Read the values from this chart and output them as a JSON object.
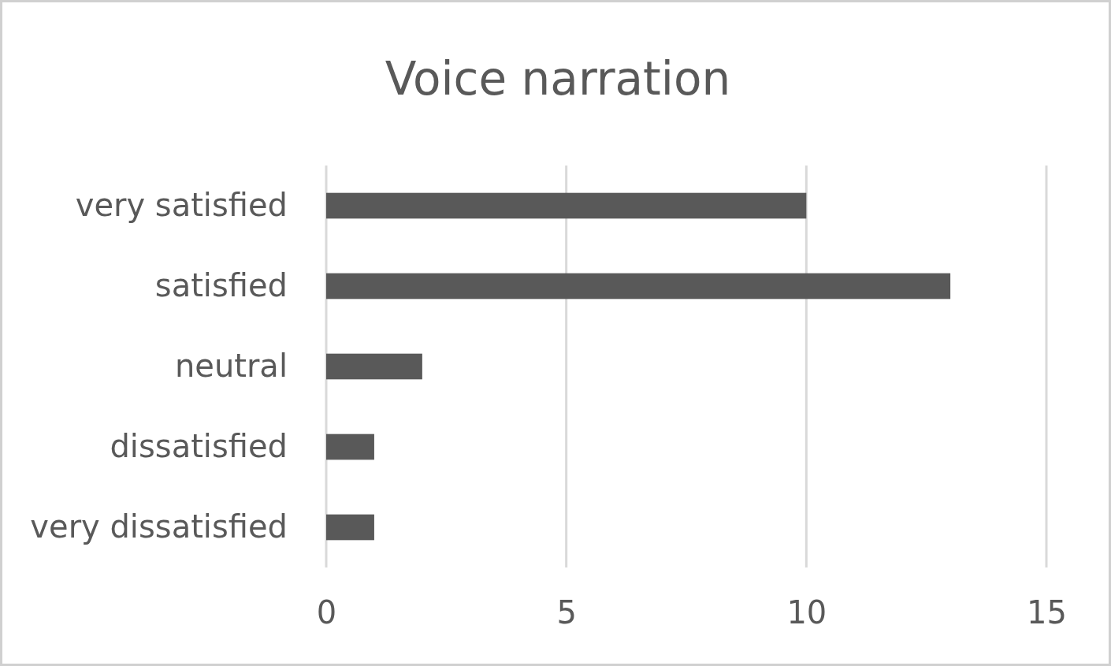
{
  "chart_data": {
    "type": "bar",
    "orientation": "horizontal",
    "title": "Voice narration",
    "categories": [
      "very satisfied",
      "satisfied",
      "neutral",
      "dissatisfied",
      "very dissatisfied"
    ],
    "values": [
      10,
      13,
      2,
      1,
      1
    ],
    "color": "#595959",
    "xlim": [
      0,
      15
    ],
    "xticks": [
      0,
      5,
      10,
      15
    ],
    "grid": "x"
  }
}
